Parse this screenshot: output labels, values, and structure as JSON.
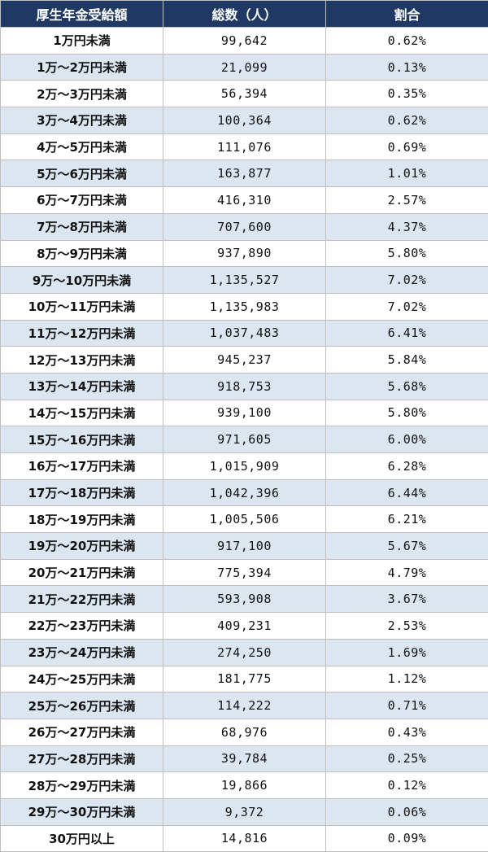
{
  "table": {
    "headers": [
      "厚生年金受給額",
      "総数（人）",
      "割合"
    ],
    "rows": [
      [
        "1万円未満",
        "99,642",
        "0.62%"
      ],
      [
        "1万～2万円未満",
        "21,099",
        "0.13%"
      ],
      [
        "2万～3万円未満",
        "56,394",
        "0.35%"
      ],
      [
        "3万～4万円未満",
        "100,364",
        "0.62%"
      ],
      [
        "4万～5万円未満",
        "111,076",
        "0.69%"
      ],
      [
        "5万～6万円未満",
        "163,877",
        "1.01%"
      ],
      [
        "6万～7万円未満",
        "416,310",
        "2.57%"
      ],
      [
        "7万～8万円未満",
        "707,600",
        "4.37%"
      ],
      [
        "8万～9万円未満",
        "937,890",
        "5.80%"
      ],
      [
        "9万～10万円未満",
        "1,135,527",
        "7.02%"
      ],
      [
        "10万～11万円未満",
        "1,135,983",
        "7.02%"
      ],
      [
        "11万～12万円未満",
        "1,037,483",
        "6.41%"
      ],
      [
        "12万～13万円未満",
        "945,237",
        "5.84%"
      ],
      [
        "13万～14万円未満",
        "918,753",
        "5.68%"
      ],
      [
        "14万～15万円未満",
        "939,100",
        "5.80%"
      ],
      [
        "15万～16万円未満",
        "971,605",
        "6.00%"
      ],
      [
        "16万～17万円未満",
        "1,015,909",
        "6.28%"
      ],
      [
        "17万～18万円未満",
        "1,042,396",
        "6.44%"
      ],
      [
        "18万～19万円未満",
        "1,005,506",
        "6.21%"
      ],
      [
        "19万～20万円未満",
        "917,100",
        "5.67%"
      ],
      [
        "20万～21万円未満",
        "775,394",
        "4.79%"
      ],
      [
        "21万～22万円未満",
        "593,908",
        "3.67%"
      ],
      [
        "22万～23万円未満",
        "409,231",
        "2.53%"
      ],
      [
        "23万～24万円未満",
        "274,250",
        "1.69%"
      ],
      [
        "24万～25万円未満",
        "181,775",
        "1.12%"
      ],
      [
        "25万～26万円未満",
        "114,222",
        "0.71%"
      ],
      [
        "26万～27万円未満",
        "68,976",
        "0.43%"
      ],
      [
        "27万～28万円未満",
        "39,784",
        "0.25%"
      ],
      [
        "28万～29万円未満",
        "19,866",
        "0.12%"
      ],
      [
        "29万～30万円未満",
        "9,372",
        "0.06%"
      ],
      [
        "30万円以上",
        "14,816",
        "0.09%"
      ]
    ]
  },
  "colors": {
    "header_bg": "#1f3864",
    "header_text": "#ffffff",
    "stripe_bg": "#dce6f1",
    "row_bg": "#ffffff",
    "border": "#bfbfbf"
  }
}
